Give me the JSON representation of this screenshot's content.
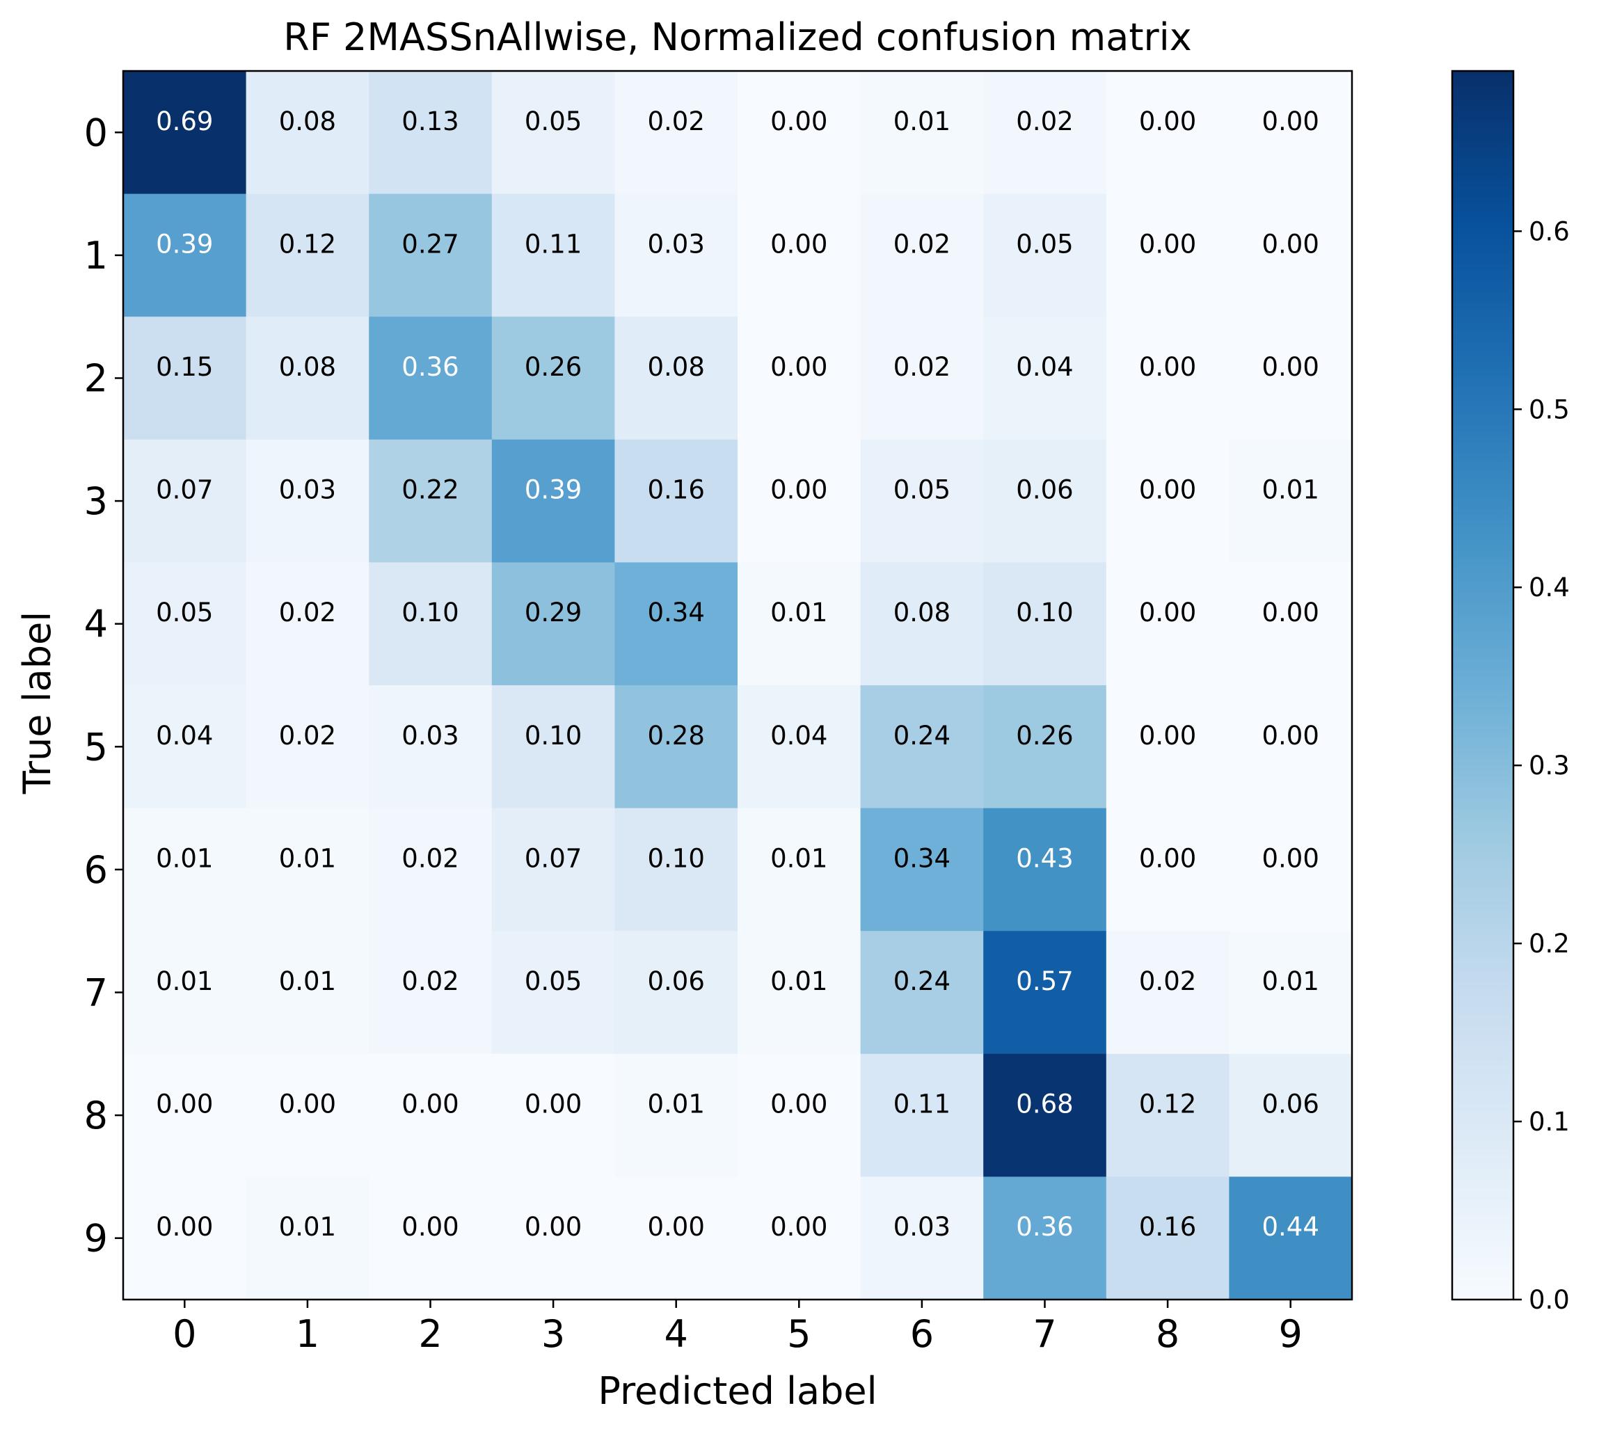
{
  "chart_data": {
    "type": "heatmap",
    "title": "RF 2MASSnAllwise, Normalized confusion matrix",
    "xlabel": "Predicted label",
    "ylabel": "True label",
    "x_categories": [
      "0",
      "1",
      "2",
      "3",
      "4",
      "5",
      "6",
      "7",
      "8",
      "9"
    ],
    "y_categories": [
      "0",
      "1",
      "2",
      "3",
      "4",
      "5",
      "6",
      "7",
      "8",
      "9"
    ],
    "values": [
      [
        0.69,
        0.08,
        0.13,
        0.05,
        0.02,
        0.0,
        0.01,
        0.02,
        0.0,
        0.0
      ],
      [
        0.39,
        0.12,
        0.27,
        0.11,
        0.03,
        0.0,
        0.02,
        0.05,
        0.0,
        0.0
      ],
      [
        0.15,
        0.08,
        0.36,
        0.26,
        0.08,
        0.0,
        0.02,
        0.04,
        0.0,
        0.0
      ],
      [
        0.07,
        0.03,
        0.22,
        0.39,
        0.16,
        0.0,
        0.05,
        0.06,
        0.0,
        0.01
      ],
      [
        0.05,
        0.02,
        0.1,
        0.29,
        0.34,
        0.01,
        0.08,
        0.1,
        0.0,
        0.0
      ],
      [
        0.04,
        0.02,
        0.03,
        0.1,
        0.28,
        0.04,
        0.24,
        0.26,
        0.0,
        0.0
      ],
      [
        0.01,
        0.01,
        0.02,
        0.07,
        0.1,
        0.01,
        0.34,
        0.43,
        0.0,
        0.0
      ],
      [
        0.01,
        0.01,
        0.02,
        0.05,
        0.06,
        0.01,
        0.24,
        0.57,
        0.02,
        0.01
      ],
      [
        0.0,
        0.0,
        0.0,
        0.0,
        0.01,
        0.0,
        0.11,
        0.68,
        0.12,
        0.06
      ],
      [
        0.0,
        0.01,
        0.0,
        0.0,
        0.0,
        0.0,
        0.03,
        0.36,
        0.16,
        0.44
      ]
    ],
    "colormap": "Blues",
    "vmin": 0.0,
    "vmax": 0.69,
    "colorbar_ticks": [
      "0.0",
      "0.1",
      "0.2",
      "0.3",
      "0.4",
      "0.5",
      "0.6"
    ],
    "grid": false
  }
}
